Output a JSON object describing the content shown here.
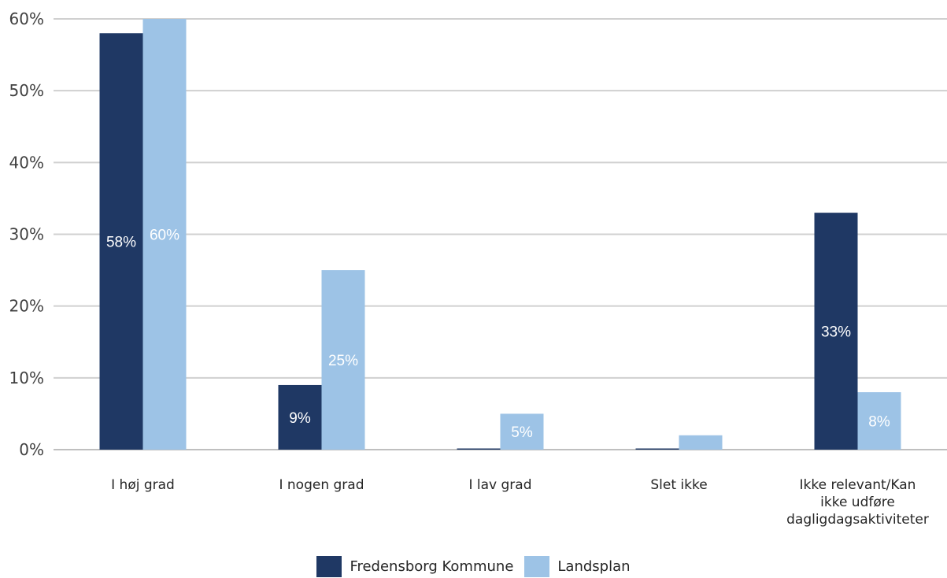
{
  "chart_data": {
    "type": "bar",
    "categories": [
      "I høj grad",
      "I nogen grad",
      "I lav grad",
      "Slet ikke",
      "Ikke relevant/Kan ikke udføre dagligdagsaktiviteter"
    ],
    "category_lines": [
      [
        "I høj grad"
      ],
      [
        "I nogen grad"
      ],
      [
        "I lav grad"
      ],
      [
        "Slet ikke"
      ],
      [
        "Ikke relevant/Kan",
        "ikke udføre",
        "dagligdagsaktiviteter"
      ]
    ],
    "series": [
      {
        "name": "Fredensborg Kommune",
        "values": [
          58,
          9,
          0,
          0,
          33
        ],
        "labels": [
          "58%",
          "9%",
          "",
          "",
          "33%"
        ],
        "color": "#1f3864"
      },
      {
        "name": "Landsplan",
        "values": [
          60,
          25,
          5,
          2,
          8
        ],
        "labels": [
          "60%",
          "25%",
          "5%",
          "",
          "8%"
        ],
        "color": "#9dc3e6"
      }
    ],
    "ylim": [
      0,
      60
    ],
    "yticks": [
      0,
      10,
      20,
      30,
      40,
      50,
      60
    ],
    "ytick_labels": [
      "0%",
      "10%",
      "20%",
      "30%",
      "40%",
      "50%",
      "60%"
    ],
    "grid": true,
    "legend": "bottom-center",
    "title": "",
    "xlabel": "",
    "ylabel": ""
  }
}
